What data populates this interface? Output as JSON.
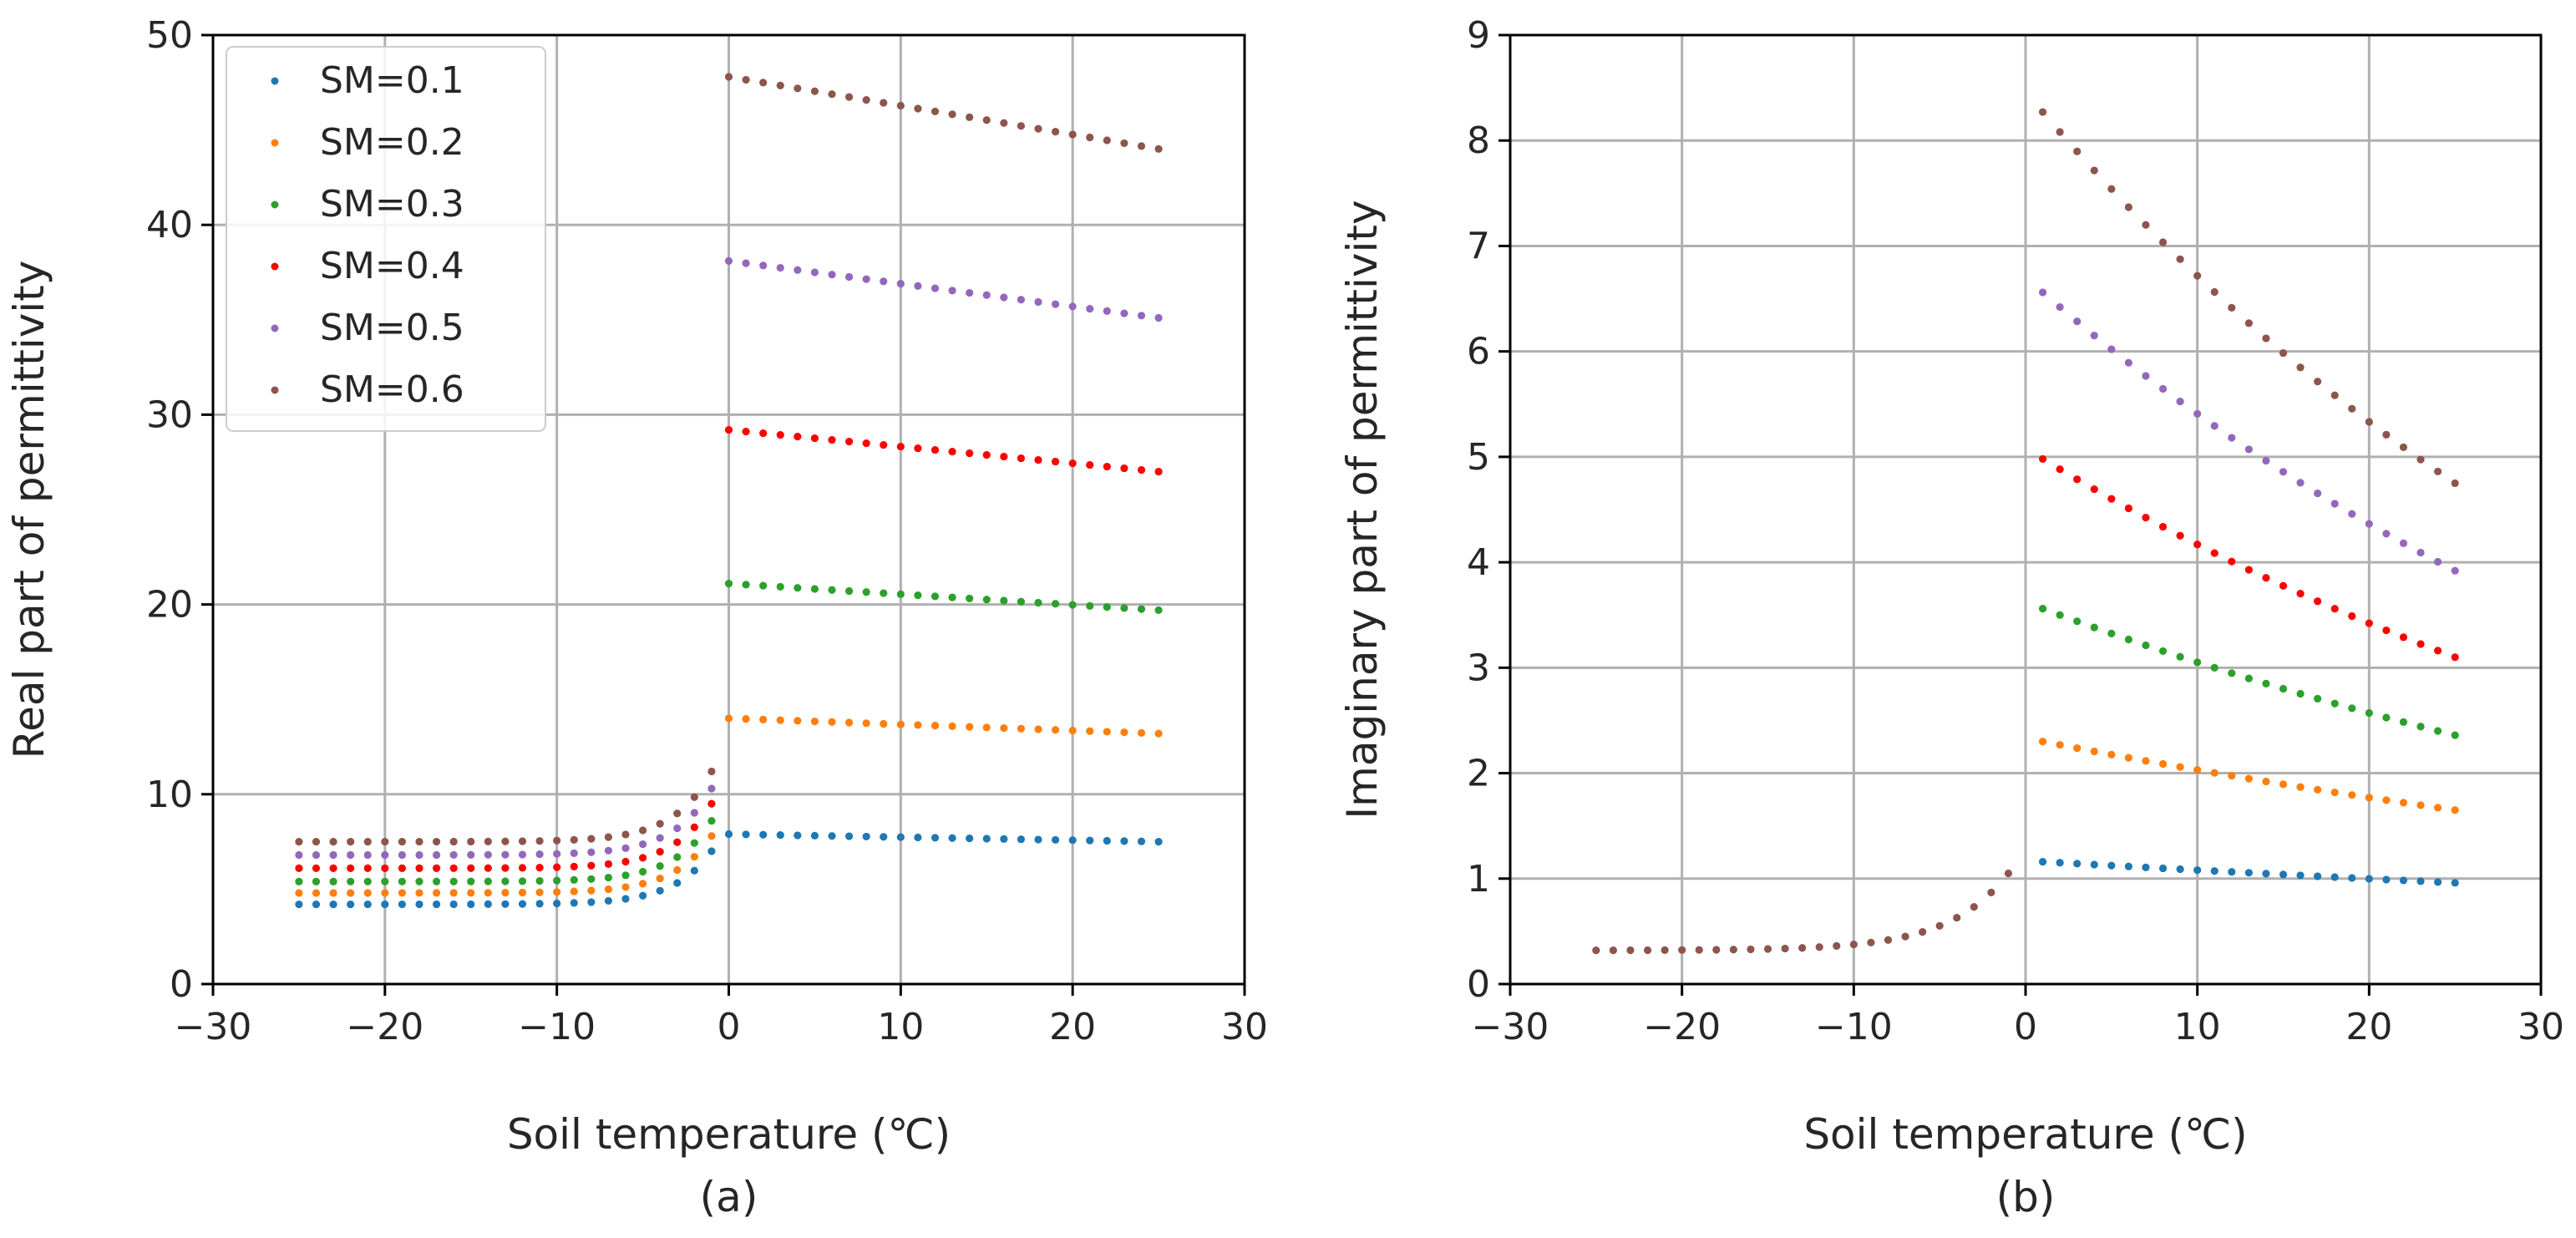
{
  "chart_data": [
    {
      "type": "scatter",
      "panel_label": "(a)",
      "xlabel": "Soil temperature (℃)",
      "ylabel": "Real part of permittivity",
      "xlim": [
        -30,
        30
      ],
      "ylim": [
        0,
        50
      ],
      "xticks": [
        -30,
        -20,
        -10,
        0,
        10,
        20,
        30
      ],
      "yticks": [
        0,
        10,
        20,
        30,
        40,
        50
      ],
      "grid": true,
      "legend_position": "top-left",
      "model": "frozen branch: T from -25 to -1 degC in 1 degC steps, y = y_at_-25 + a*exp(T/2.2) (spike to y_at_-1 near 0); thawed branch: T from 0 to 25 degC, linear",
      "series": [
        {
          "name": "SM=0.1",
          "color": "#1f77b4",
          "frozen_start": 4.2,
          "frozen_end": 7.0,
          "thawed": {
            "x_start": 0,
            "x_end": 25,
            "y_start": 7.9,
            "y_end": 7.5
          }
        },
        {
          "name": "SM=0.2",
          "color": "#ff7f0e",
          "frozen_start": 4.8,
          "frozen_end": 7.8,
          "thawed": {
            "x_start": 0,
            "x_end": 25,
            "y_start": 14.0,
            "y_end": 13.2
          }
        },
        {
          "name": "SM=0.3",
          "color": "#2ca02c",
          "frozen_start": 5.4,
          "frozen_end": 8.6,
          "thawed": {
            "x_start": 0,
            "x_end": 25,
            "y_start": 21.1,
            "y_end": 19.7
          }
        },
        {
          "name": "SM=0.4",
          "color": "#ff0000",
          "frozen_start": 6.1,
          "frozen_end": 9.5,
          "thawed": {
            "x_start": 0,
            "x_end": 25,
            "y_start": 29.2,
            "y_end": 27.0
          }
        },
        {
          "name": "SM=0.5",
          "color": "#9467bd",
          "frozen_start": 6.8,
          "frozen_end": 10.3,
          "thawed": {
            "x_start": 0,
            "x_end": 25,
            "y_start": 38.1,
            "y_end": 35.1
          }
        },
        {
          "name": "SM=0.6",
          "color": "#8c564b",
          "frozen_start": 7.5,
          "frozen_end": 11.2,
          "thawed": {
            "x_start": 0,
            "x_end": 25,
            "y_start": 47.8,
            "y_end": 44.0
          }
        }
      ]
    },
    {
      "type": "scatter",
      "panel_label": "(b)",
      "xlabel": "Soil temperature (℃)",
      "ylabel": "Imaginary part of permittivity",
      "xlim": [
        -30,
        30
      ],
      "ylim": [
        0,
        9
      ],
      "xticks": [
        -30,
        -20,
        -10,
        0,
        10,
        20,
        30
      ],
      "yticks": [
        0,
        1,
        2,
        3,
        4,
        5,
        6,
        7,
        8,
        9
      ],
      "grid": true,
      "model": "frozen branch (drawn with SM=0.6 color on top): T from -25 to -1 degC, y = y_at_-25 + a*exp(T/3.5); thawed branch: T from 1 to 25 degC, exponential decay between given endpoints",
      "series": [
        {
          "name": "SM=0.1",
          "color": "#1f77b4",
          "frozen_start": 0.32,
          "frozen_end": 1.05,
          "thawed": {
            "x_start": 1,
            "x_end": 25,
            "y_start": 1.16,
            "y_end": 0.96
          }
        },
        {
          "name": "SM=0.2",
          "color": "#ff7f0e",
          "frozen_start": 0.32,
          "frozen_end": 1.05,
          "thawed": {
            "x_start": 1,
            "x_end": 25,
            "y_start": 2.3,
            "y_end": 1.65
          }
        },
        {
          "name": "SM=0.3",
          "color": "#2ca02c",
          "frozen_start": 0.32,
          "frozen_end": 1.05,
          "thawed": {
            "x_start": 1,
            "x_end": 25,
            "y_start": 3.56,
            "y_end": 2.36
          }
        },
        {
          "name": "SM=0.4",
          "color": "#ff0000",
          "frozen_start": 0.32,
          "frozen_end": 1.05,
          "thawed": {
            "x_start": 1,
            "x_end": 25,
            "y_start": 4.98,
            "y_end": 3.1
          }
        },
        {
          "name": "SM=0.5",
          "color": "#9467bd",
          "frozen_start": 0.32,
          "frozen_end": 1.05,
          "thawed": {
            "x_start": 1,
            "x_end": 25,
            "y_start": 6.56,
            "y_end": 3.92
          }
        },
        {
          "name": "SM=0.6",
          "color": "#8c564b",
          "frozen_start": 0.32,
          "frozen_end": 1.05,
          "thawed": {
            "x_start": 1,
            "x_end": 25,
            "y_start": 8.27,
            "y_end": 4.75
          }
        }
      ]
    }
  ]
}
